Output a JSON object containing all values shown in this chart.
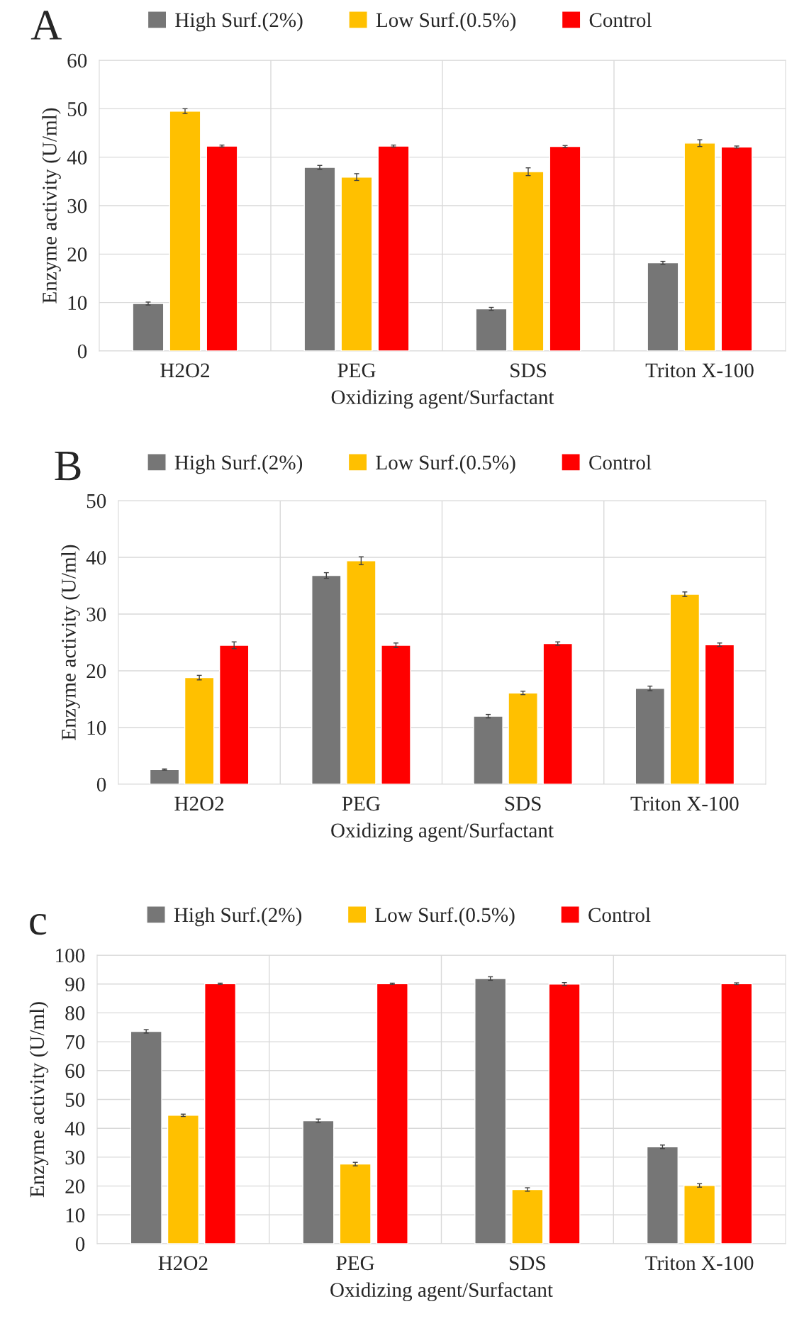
{
  "chart_data": [
    {
      "type": "bar",
      "title": "A",
      "xlabel": "Oxidizing agent/Surfactant",
      "ylabel": "Enzyme activity (U/ml)",
      "categories": [
        "H2O2",
        "PEG",
        "SDS",
        "Triton X-100"
      ],
      "ylim": [
        0,
        60
      ],
      "yticks": [
        0,
        10,
        20,
        30,
        40,
        50,
        60
      ],
      "grid": true,
      "legend": "top",
      "series": [
        {
          "name": "High Surf.(2%)",
          "color": "#767676",
          "values": [
            9.8,
            37.9,
            8.7,
            18.2
          ],
          "errors": [
            0.3,
            0.4,
            0.3,
            0.3
          ]
        },
        {
          "name": "Low Surf.(0.5%)",
          "color": "#ffc000",
          "values": [
            49.5,
            35.9,
            37.0,
            42.9
          ],
          "errors": [
            0.5,
            0.7,
            0.8,
            0.7
          ]
        },
        {
          "name": "Control",
          "color": "#ff0000",
          "values": [
            42.3,
            42.3,
            42.2,
            42.1
          ],
          "errors": [
            0.2,
            0.2,
            0.2,
            0.2
          ]
        }
      ]
    },
    {
      "type": "bar",
      "title": "B",
      "xlabel": "Oxidizing agent/Surfactant",
      "ylabel": "Enzyme activity (U/ml)",
      "categories": [
        "H2O2",
        "PEG",
        "SDS",
        "Triton X-100"
      ],
      "ylim": [
        0,
        50
      ],
      "yticks": [
        0,
        10,
        20,
        30,
        40,
        50
      ],
      "grid": true,
      "legend": "top",
      "series": [
        {
          "name": "High Surf.(2%)",
          "color": "#767676",
          "values": [
            2.6,
            36.8,
            12.0,
            16.9
          ],
          "errors": [
            0.1,
            0.5,
            0.3,
            0.4
          ]
        },
        {
          "name": "Low Surf.(0.5%)",
          "color": "#ffc000",
          "values": [
            18.8,
            39.4,
            16.1,
            33.5
          ],
          "errors": [
            0.4,
            0.7,
            0.3,
            0.4
          ]
        },
        {
          "name": "Control",
          "color": "#ff0000",
          "values": [
            24.5,
            24.5,
            24.8,
            24.6
          ],
          "errors": [
            0.6,
            0.4,
            0.3,
            0.3
          ]
        }
      ]
    },
    {
      "type": "bar",
      "title": "c",
      "xlabel": "Oxidizing agent/Surfactant",
      "ylabel": "Enzyme activity (U/ml)",
      "categories": [
        "H2O2",
        "PEG",
        "SDS",
        "Triton X-100"
      ],
      "ylim": [
        0,
        100
      ],
      "yticks": [
        0,
        10,
        20,
        30,
        40,
        50,
        60,
        70,
        80,
        90,
        100
      ],
      "grid": true,
      "legend": "top",
      "series": [
        {
          "name": "High Surf.(2%)",
          "color": "#767676",
          "values": [
            73.6,
            42.6,
            91.9,
            33.6
          ],
          "errors": [
            0.6,
            0.6,
            0.6,
            0.6
          ]
        },
        {
          "name": "Low Surf.(0.5%)",
          "color": "#ffc000",
          "values": [
            44.5,
            27.6,
            18.8,
            20.2
          ],
          "errors": [
            0.4,
            0.6,
            0.6,
            0.6
          ]
        },
        {
          "name": "Control",
          "color": "#ff0000",
          "values": [
            90.1,
            90.1,
            90.0,
            90.1
          ],
          "errors": [
            0.2,
            0.2,
            0.5,
            0.3
          ]
        }
      ]
    }
  ]
}
